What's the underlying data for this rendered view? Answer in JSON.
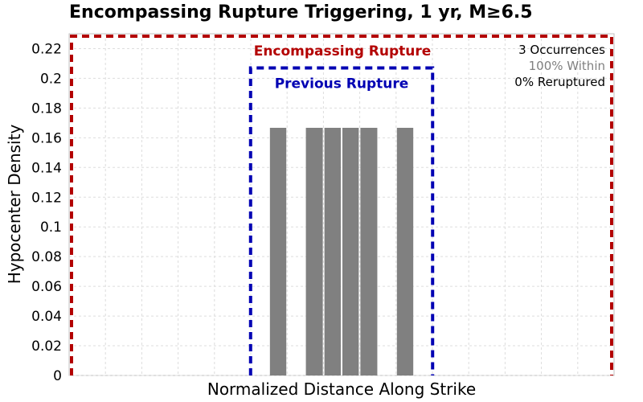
{
  "chart_data": {
    "type": "bar",
    "title": "Encompassing Rupture Triggering, 1 yr, M≥6.5",
    "xlabel": "Normalized Distance Along Strike",
    "ylabel": "Hypocenter Density",
    "xlim": [
      0,
      1
    ],
    "ylim": [
      0,
      0.23
    ],
    "yticks": [
      "0",
      "0.02",
      "0.04",
      "0.06",
      "0.08",
      "0.1",
      "0.12",
      "0.14",
      "0.16",
      "0.18",
      "0.2",
      "0.22"
    ],
    "grid": true,
    "bars": [
      {
        "x0": 0.367,
        "x1": 0.4,
        "value": 0.1667
      },
      {
        "x0": 0.433,
        "x1": 0.467,
        "value": 0.1667
      },
      {
        "x0": 0.467,
        "x1": 0.5,
        "value": 0.1667
      },
      {
        "x0": 0.5,
        "x1": 0.533,
        "value": 0.1667
      },
      {
        "x0": 0.533,
        "x1": 0.567,
        "value": 0.1667
      },
      {
        "x0": 0.6,
        "x1": 0.633,
        "value": 0.1667
      }
    ],
    "bar_color": "#808080",
    "regions": [
      {
        "label": "Encompassing Rupture",
        "x0": 0.0,
        "x1": 1.0,
        "top": 0.23,
        "color": "#b30000"
      },
      {
        "label": "Previous Rupture",
        "x0": 0.333,
        "x1": 0.667,
        "top": 0.207,
        "color": "#0000b3"
      }
    ],
    "annotations": [
      {
        "text": "3 Occurrences",
        "color": "#000000"
      },
      {
        "text": "100% Within",
        "color": "#808080"
      },
      {
        "text": "0% Reruptured",
        "color": "#000000"
      }
    ]
  }
}
